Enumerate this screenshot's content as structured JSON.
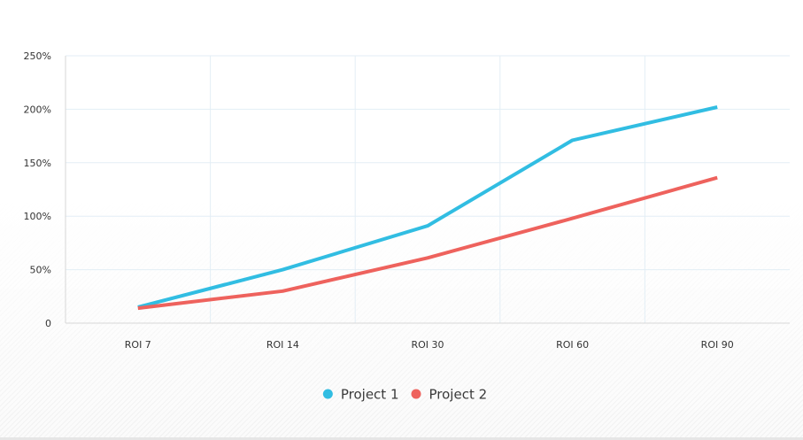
{
  "chart_data": {
    "type": "line",
    "categories": [
      "ROI 7",
      "ROI 14",
      "ROI 30",
      "ROI 60",
      "ROI 90"
    ],
    "series": [
      {
        "name": "Project 1",
        "color": "#31bde2",
        "values": [
          15,
          50,
          91,
          171,
          202
        ]
      },
      {
        "name": "Project 2",
        "color": "#ee625d",
        "values": [
          14,
          30,
          61,
          98,
          136
        ]
      }
    ],
    "ylim": [
      0,
      250
    ],
    "yticks": [
      {
        "value": 0,
        "label": "0"
      },
      {
        "value": 50,
        "label": "50%"
      },
      {
        "value": 100,
        "label": "100%"
      },
      {
        "value": 150,
        "label": "150%"
      },
      {
        "value": 200,
        "label": "200%"
      },
      {
        "value": 250,
        "label": "250%"
      }
    ],
    "grid": true,
    "legend_position": "bottom-center",
    "title": "",
    "xlabel": "",
    "ylabel": ""
  }
}
